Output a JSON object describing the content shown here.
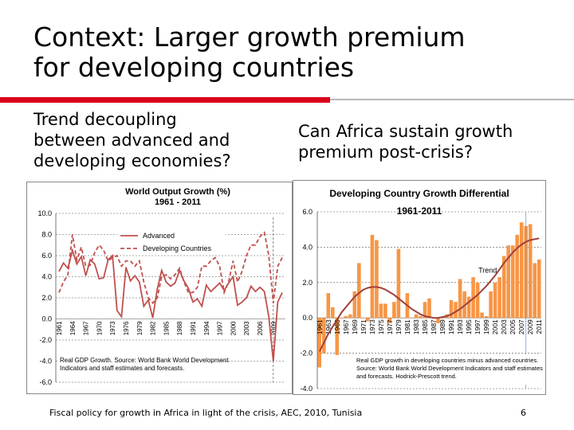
{
  "slide": {
    "title_lines": [
      "Context: Larger growth premium",
      "for developing countries"
    ],
    "left_heading_lines": [
      "Trend decoupling",
      "between advanced and",
      "developing economies?"
    ],
    "right_heading_lines": [
      "Can Africa sustain growth",
      "premium post-crisis?"
    ],
    "footer": "Fiscal policy for growth in Africa in light of the crisis, AEC, 2010, Tunisia",
    "page_number": "6"
  },
  "colors": {
    "accent_red": "#d9001b",
    "series_red": "#c0504d",
    "bar_orange": "#f79646",
    "trend": "#a0403a"
  },
  "chart_data": [
    {
      "type": "line",
      "title": "World Output Growth (%)",
      "subtitle": "1961 - 2011",
      "ylim": [
        -6,
        10
      ],
      "yticks": [
        "10.0",
        "8.0",
        "6.0",
        "4.0",
        "2.0",
        "0.0",
        "-2.0",
        "-4.0",
        "-6.0"
      ],
      "xtick_labels": [
        "1961",
        "1964",
        "1967",
        "1970",
        "1973",
        "1976",
        "1979",
        "1982",
        "1985",
        "1988",
        "1991",
        "1994",
        "1997",
        "2000",
        "2003",
        "2006",
        "2009"
      ],
      "legend_position": "top-right",
      "x": [
        1961,
        1962,
        1963,
        1964,
        1965,
        1966,
        1967,
        1968,
        1969,
        1970,
        1971,
        1972,
        1973,
        1974,
        1975,
        1976,
        1977,
        1978,
        1979,
        1980,
        1981,
        1982,
        1983,
        1984,
        1985,
        1986,
        1987,
        1988,
        1989,
        1990,
        1991,
        1992,
        1993,
        1994,
        1995,
        1996,
        1997,
        1998,
        1999,
        2000,
        2001,
        2002,
        2003,
        2004,
        2005,
        2006,
        2007,
        2008,
        2009,
        2010,
        2011
      ],
      "series": [
        {
          "name": "Advanced",
          "style": "solid",
          "values": [
            4.5,
            5.3,
            4.8,
            6.5,
            5.2,
            5.9,
            4.1,
            5.6,
            5.2,
            3.8,
            3.9,
            5.6,
            6.0,
            0.8,
            0.2,
            4.9,
            3.6,
            4.1,
            3.5,
            1.2,
            1.8,
            0.1,
            2.8,
            4.6,
            3.5,
            3.1,
            3.4,
            4.6,
            3.6,
            2.9,
            1.6,
            1.9,
            1.2,
            3.2,
            2.6,
            3.0,
            3.4,
            2.7,
            3.4,
            4.0,
            1.3,
            1.6,
            2.0,
            3.1,
            2.6,
            3.0,
            2.6,
            0.2,
            -4.0,
            1.6,
            2.5
          ]
        },
        {
          "name": "Developing Countries",
          "style": "dashed",
          "values": [
            2.5,
            3.5,
            4.2,
            8.0,
            5.6,
            6.8,
            5.0,
            5.1,
            6.3,
            7.0,
            6.5,
            5.5,
            5.8,
            6.0,
            5.0,
            5.5,
            5.5,
            5.0,
            5.5,
            3.5,
            2.0,
            1.5,
            2.0,
            4.0,
            4.2,
            3.8,
            4.2,
            4.8,
            3.5,
            2.5,
            2.5,
            3.0,
            5.0,
            5.0,
            5.5,
            5.8,
            5.0,
            2.5,
            3.5,
            5.5,
            3.5,
            4.5,
            6.0,
            7.0,
            7.0,
            7.8,
            8.2,
            6.0,
            1.5,
            5.0,
            5.8
          ]
        }
      ],
      "note": "Real GDP Growth.  Source: World Bank World Development Indicators and staff estimates and forecasts."
    },
    {
      "type": "bar",
      "title": "Developing Country  Growth Differential",
      "subtitle": "1961-2011",
      "ylim": [
        -4,
        6
      ],
      "yticks": [
        "6.0",
        "4.0",
        "2.0",
        "0.0",
        "-2.0",
        "-4.0"
      ],
      "xtick_labels": [
        "1961",
        "1963",
        "1965",
        "1967",
        "1969",
        "1971",
        "1973",
        "1975",
        "1977",
        "1979",
        "1981",
        "1983",
        "1985",
        "1987",
        "1989",
        "1991",
        "1993",
        "1995",
        "1997",
        "1999",
        "2001",
        "2003",
        "2005",
        "2007",
        "2009",
        "2011"
      ],
      "categories": [
        1961,
        1962,
        1963,
        1964,
        1965,
        1966,
        1967,
        1968,
        1969,
        1970,
        1971,
        1972,
        1973,
        1974,
        1975,
        1976,
        1977,
        1978,
        1979,
        1980,
        1981,
        1982,
        1983,
        1984,
        1985,
        1986,
        1987,
        1988,
        1989,
        1990,
        1991,
        1992,
        1993,
        1994,
        1995,
        1996,
        1997,
        1998,
        1999,
        2000,
        2001,
        2002,
        2003,
        2004,
        2005,
        2006,
        2007,
        2008,
        2009,
        2010,
        2011
      ],
      "values": [
        -2.8,
        -2.0,
        1.4,
        0.6,
        -2.1,
        0.0,
        0.1,
        0.2,
        1.5,
        3.1,
        0.0,
        -0.2,
        4.7,
        4.4,
        0.8,
        0.8,
        -0.3,
        0.9,
        3.9,
        0.0,
        1.4,
        0.0,
        0.2,
        0.1,
        0.9,
        1.1,
        0.0,
        -0.3,
        0.0,
        0.2,
        1.0,
        0.9,
        2.2,
        1.5,
        1.2,
        2.3,
        2.0,
        0.3,
        0.1,
        1.5,
        2.0,
        2.3,
        3.5,
        4.1,
        4.1,
        4.7,
        5.4,
        5.2,
        5.3,
        3.1,
        3.3
      ],
      "trend": {
        "name": "Trend",
        "values": [
          -1.9,
          -1.4,
          -0.9,
          -0.5,
          -0.1,
          0.3,
          0.6,
          0.9,
          1.2,
          1.4,
          1.6,
          1.7,
          1.75,
          1.75,
          1.7,
          1.6,
          1.45,
          1.3,
          1.1,
          0.9,
          0.7,
          0.5,
          0.35,
          0.2,
          0.1,
          0.05,
          0.0,
          0.0,
          0.05,
          0.1,
          0.2,
          0.35,
          0.5,
          0.7,
          0.9,
          1.1,
          1.3,
          1.55,
          1.8,
          2.1,
          2.4,
          2.75,
          3.1,
          3.4,
          3.7,
          3.95,
          4.15,
          4.3,
          4.4,
          4.45,
          4.5
        ]
      },
      "note": "Real GDP growth in developing countries minus advanced countries.  Source: World Bank World Development Indicators and staff estimates and forecasts.  Hodrick-Prescott trend."
    }
  ]
}
